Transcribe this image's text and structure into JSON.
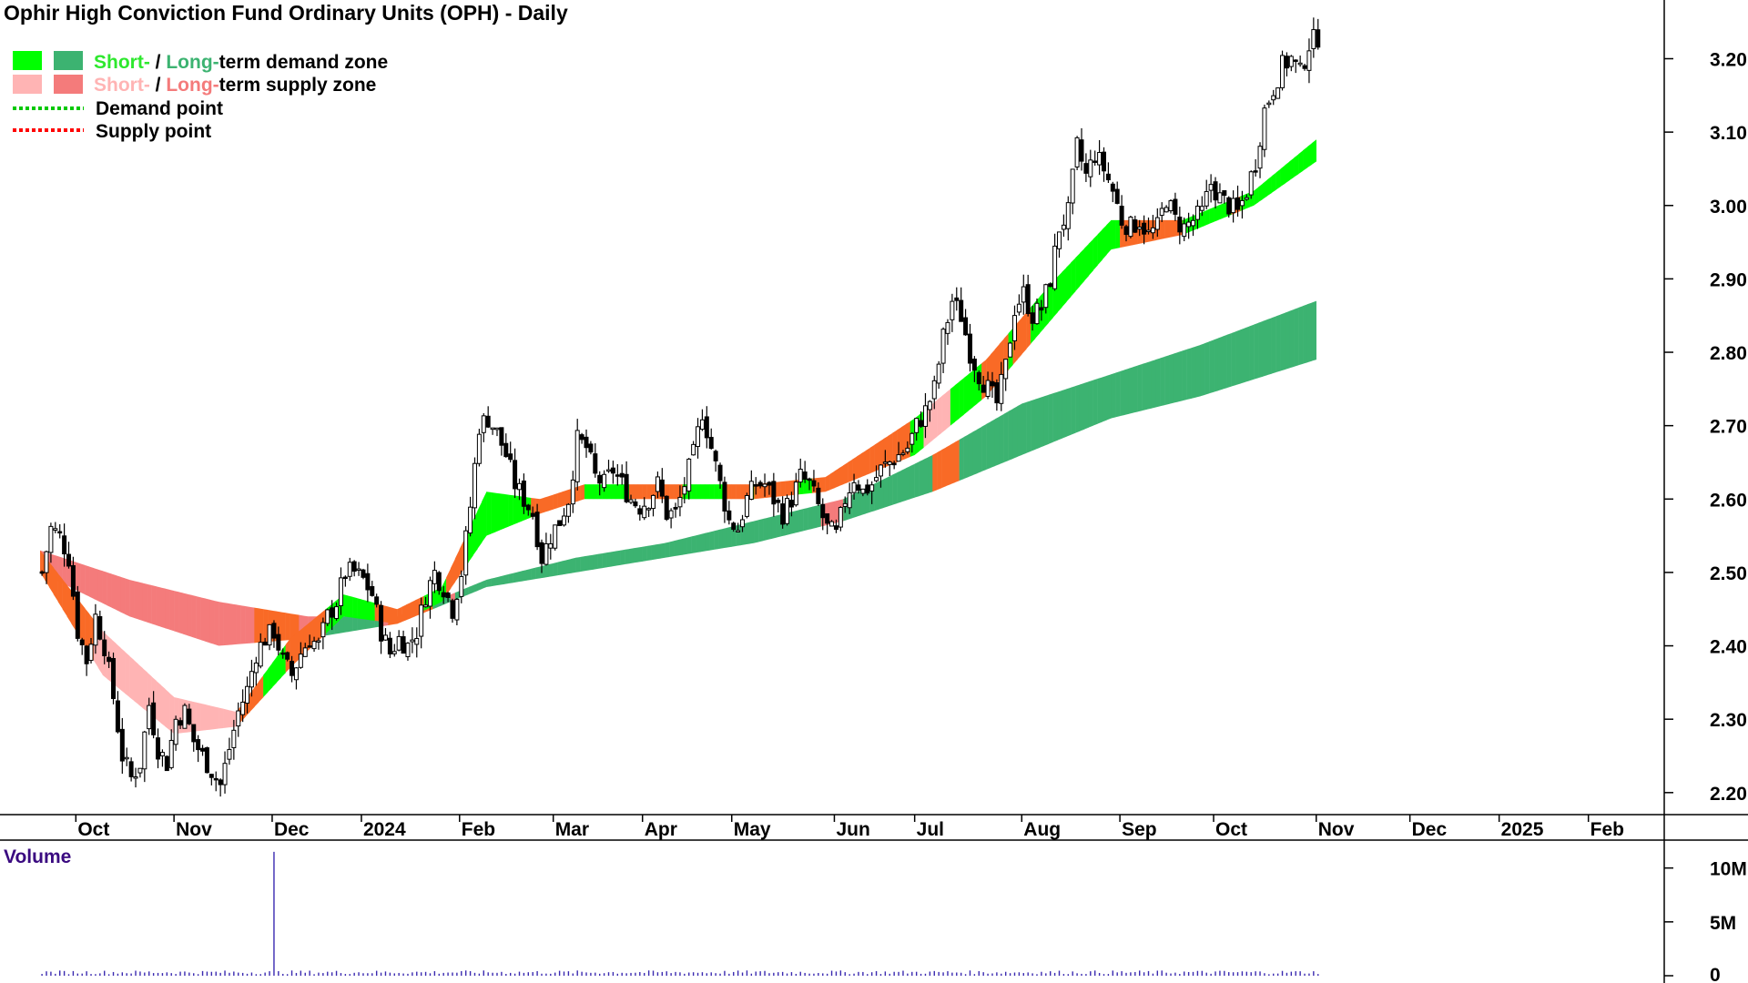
{
  "chart_data": {
    "type": "candlestick",
    "title": "Ophir High Conviction Fund Ordinary Units (OPH) - Daily",
    "legend": {
      "demand_short_word": "Short-",
      "demand_sep": " / ",
      "demand_long_word": "Long-",
      "demand_rest": "term demand zone",
      "supply_short_word": "Short-",
      "supply_sep": " / ",
      "supply_long_word": "Long-",
      "supply_rest": "term supply zone",
      "demand_point": "Demand point",
      "supply_point": "Supply point",
      "placement": "top-left"
    },
    "colors": {
      "short_demand": "#00ff00",
      "long_demand": "#3cb371",
      "short_supply": "#ffb4b4",
      "long_supply": "#f47b7b",
      "overlap_zone": "#f96a26",
      "demand_point": "#00c800",
      "supply_point": "#ff0000",
      "candle": "#000000",
      "volume": "#3a2ab0"
    },
    "x_ticks": [
      {
        "label": "Oct",
        "x": 8.0
      },
      {
        "label": "Nov",
        "x": 30.0
      },
      {
        "label": "Dec",
        "x": 52.0
      },
      {
        "label": "2024",
        "x": 72.0
      },
      {
        "label": "Feb",
        "x": 94.0
      },
      {
        "label": "Mar",
        "x": 115.0
      },
      {
        "label": "Apr",
        "x": 135.0
      },
      {
        "label": "May",
        "x": 155.0
      },
      {
        "label": "Jun",
        "x": 178.0
      },
      {
        "label": "Jul",
        "x": 196.0
      },
      {
        "label": "Aug",
        "x": 220.0
      },
      {
        "label": "Sep",
        "x": 242.0
      },
      {
        "label": "Oct",
        "x": 263.0
      },
      {
        "label": "Nov",
        "x": 286.0
      },
      {
        "label": "Dec",
        "x": 307.0
      },
      {
        "label": "2025",
        "x": 327.0
      },
      {
        "label": "Feb",
        "x": 347.0
      }
    ],
    "x_range": [
      -9,
      364
    ],
    "y_ticks": [
      "3.20",
      "3.10",
      "3.00",
      "2.90",
      "2.80",
      "2.70",
      "2.60",
      "2.50",
      "2.40",
      "2.30",
      "2.20"
    ],
    "y_range": [
      2.17,
      3.28
    ],
    "closes": [
      {
        "x": 0,
        "c": 2.5
      },
      {
        "x": 2,
        "c": 2.56
      },
      {
        "x": 4,
        "c": 2.55
      },
      {
        "x": 6,
        "c": 2.52
      },
      {
        "x": 8,
        "c": 2.42
      },
      {
        "x": 10,
        "c": 2.38
      },
      {
        "x": 12,
        "c": 2.44
      },
      {
        "x": 14,
        "c": 2.4
      },
      {
        "x": 16,
        "c": 2.33
      },
      {
        "x": 18,
        "c": 2.25
      },
      {
        "x": 20,
        "c": 2.22
      },
      {
        "x": 22,
        "c": 2.24
      },
      {
        "x": 24,
        "c": 2.32
      },
      {
        "x": 26,
        "c": 2.26
      },
      {
        "x": 28,
        "c": 2.24
      },
      {
        "x": 30,
        "c": 2.3
      },
      {
        "x": 32,
        "c": 2.31
      },
      {
        "x": 34,
        "c": 2.27
      },
      {
        "x": 36,
        "c": 2.25
      },
      {
        "x": 38,
        "c": 2.23
      },
      {
        "x": 40,
        "c": 2.21
      },
      {
        "x": 42,
        "c": 2.26
      },
      {
        "x": 44,
        "c": 2.31
      },
      {
        "x": 46,
        "c": 2.34
      },
      {
        "x": 48,
        "c": 2.39
      },
      {
        "x": 50,
        "c": 2.41
      },
      {
        "x": 52,
        "c": 2.42
      },
      {
        "x": 54,
        "c": 2.38
      },
      {
        "x": 56,
        "c": 2.36
      },
      {
        "x": 58,
        "c": 2.39
      },
      {
        "x": 60,
        "c": 2.41
      },
      {
        "x": 62,
        "c": 2.4
      },
      {
        "x": 64,
        "c": 2.44
      },
      {
        "x": 66,
        "c": 2.46
      },
      {
        "x": 68,
        "c": 2.5
      },
      {
        "x": 70,
        "c": 2.5
      },
      {
        "x": 72,
        "c": 2.49
      },
      {
        "x": 74,
        "c": 2.47
      },
      {
        "x": 76,
        "c": 2.42
      },
      {
        "x": 78,
        "c": 2.39
      },
      {
        "x": 80,
        "c": 2.41
      },
      {
        "x": 82,
        "c": 2.4
      },
      {
        "x": 84,
        "c": 2.42
      },
      {
        "x": 86,
        "c": 2.47
      },
      {
        "x": 88,
        "c": 2.5
      },
      {
        "x": 90,
        "c": 2.48
      },
      {
        "x": 92,
        "c": 2.45
      },
      {
        "x": 94,
        "c": 2.5
      },
      {
        "x": 96,
        "c": 2.59
      },
      {
        "x": 98,
        "c": 2.7
      },
      {
        "x": 100,
        "c": 2.71
      },
      {
        "x": 102,
        "c": 2.69
      },
      {
        "x": 104,
        "c": 2.66
      },
      {
        "x": 106,
        "c": 2.62
      },
      {
        "x": 108,
        "c": 2.6
      },
      {
        "x": 110,
        "c": 2.58
      },
      {
        "x": 112,
        "c": 2.52
      },
      {
        "x": 114,
        "c": 2.55
      },
      {
        "x": 116,
        "c": 2.57
      },
      {
        "x": 118,
        "c": 2.6
      },
      {
        "x": 120,
        "c": 2.68
      },
      {
        "x": 122,
        "c": 2.67
      },
      {
        "x": 124,
        "c": 2.63
      },
      {
        "x": 126,
        "c": 2.62
      },
      {
        "x": 128,
        "c": 2.64
      },
      {
        "x": 130,
        "c": 2.62
      },
      {
        "x": 132,
        "c": 2.6
      },
      {
        "x": 134,
        "c": 2.59
      },
      {
        "x": 136,
        "c": 2.6
      },
      {
        "x": 138,
        "c": 2.62
      },
      {
        "x": 140,
        "c": 2.58
      },
      {
        "x": 142,
        "c": 2.58
      },
      {
        "x": 144,
        "c": 2.62
      },
      {
        "x": 146,
        "c": 2.66
      },
      {
        "x": 148,
        "c": 2.72
      },
      {
        "x": 150,
        "c": 2.67
      },
      {
        "x": 152,
        "c": 2.62
      },
      {
        "x": 154,
        "c": 2.57
      },
      {
        "x": 156,
        "c": 2.56
      },
      {
        "x": 158,
        "c": 2.6
      },
      {
        "x": 160,
        "c": 2.62
      },
      {
        "x": 162,
        "c": 2.62
      },
      {
        "x": 164,
        "c": 2.6
      },
      {
        "x": 166,
        "c": 2.58
      },
      {
        "x": 168,
        "c": 2.6
      },
      {
        "x": 170,
        "c": 2.63
      },
      {
        "x": 172,
        "c": 2.62
      },
      {
        "x": 174,
        "c": 2.59
      },
      {
        "x": 176,
        "c": 2.56
      },
      {
        "x": 178,
        "c": 2.55
      },
      {
        "x": 180,
        "c": 2.6
      },
      {
        "x": 182,
        "c": 2.63
      },
      {
        "x": 184,
        "c": 2.61
      },
      {
        "x": 186,
        "c": 2.62
      },
      {
        "x": 188,
        "c": 2.64
      },
      {
        "x": 190,
        "c": 2.65
      },
      {
        "x": 192,
        "c": 2.66
      },
      {
        "x": 194,
        "c": 2.67
      },
      {
        "x": 196,
        "c": 2.7
      },
      {
        "x": 198,
        "c": 2.72
      },
      {
        "x": 200,
        "c": 2.75
      },
      {
        "x": 202,
        "c": 2.82
      },
      {
        "x": 204,
        "c": 2.87
      },
      {
        "x": 206,
        "c": 2.85
      },
      {
        "x": 208,
        "c": 2.8
      },
      {
        "x": 210,
        "c": 2.77
      },
      {
        "x": 212,
        "c": 2.75
      },
      {
        "x": 214,
        "c": 2.73
      },
      {
        "x": 216,
        "c": 2.78
      },
      {
        "x": 218,
        "c": 2.86
      },
      {
        "x": 220,
        "c": 2.88
      },
      {
        "x": 222,
        "c": 2.85
      },
      {
        "x": 224,
        "c": 2.86
      },
      {
        "x": 226,
        "c": 2.9
      },
      {
        "x": 228,
        "c": 2.97
      },
      {
        "x": 230,
        "c": 2.99
      },
      {
        "x": 232,
        "c": 3.08
      },
      {
        "x": 234,
        "c": 3.04
      },
      {
        "x": 236,
        "c": 3.07
      },
      {
        "x": 238,
        "c": 3.05
      },
      {
        "x": 240,
        "c": 3.02
      },
      {
        "x": 242,
        "c": 2.98
      },
      {
        "x": 244,
        "c": 2.97
      },
      {
        "x": 246,
        "c": 2.98
      },
      {
        "x": 248,
        "c": 2.96
      },
      {
        "x": 250,
        "c": 2.97
      },
      {
        "x": 252,
        "c": 3.01
      },
      {
        "x": 254,
        "c": 2.98
      },
      {
        "x": 256,
        "c": 2.97
      },
      {
        "x": 258,
        "c": 2.98
      },
      {
        "x": 260,
        "c": 2.99
      },
      {
        "x": 262,
        "c": 3.03
      },
      {
        "x": 264,
        "c": 3.01
      },
      {
        "x": 266,
        "c": 3.0
      },
      {
        "x": 268,
        "c": 2.99
      },
      {
        "x": 270,
        "c": 3.02
      },
      {
        "x": 272,
        "c": 3.06
      },
      {
        "x": 274,
        "c": 3.13
      },
      {
        "x": 276,
        "c": 3.16
      },
      {
        "x": 278,
        "c": 3.19
      },
      {
        "x": 280,
        "c": 3.2
      },
      {
        "x": 282,
        "c": 3.18
      },
      {
        "x": 284,
        "c": 3.22
      },
      {
        "x": 286,
        "c": 3.23
      }
    ],
    "zones": {
      "short_term": [
        {
          "x": 0,
          "a": 2.5,
          "b": 2.53
        },
        {
          "x": 14,
          "a": 2.36,
          "b": 2.42
        },
        {
          "x": 30,
          "a": 2.28,
          "b": 2.33
        },
        {
          "x": 44,
          "a": 2.29,
          "b": 2.31
        },
        {
          "x": 56,
          "a": 2.37,
          "b": 2.41
        },
        {
          "x": 68,
          "a": 2.44,
          "b": 2.47
        },
        {
          "x": 80,
          "a": 2.43,
          "b": 2.45
        },
        {
          "x": 90,
          "a": 2.46,
          "b": 2.48
        },
        {
          "x": 100,
          "a": 2.55,
          "b": 2.61
        },
        {
          "x": 112,
          "a": 2.58,
          "b": 2.6
        },
        {
          "x": 122,
          "a": 2.6,
          "b": 2.62
        },
        {
          "x": 140,
          "a": 2.6,
          "b": 2.62
        },
        {
          "x": 160,
          "a": 2.6,
          "b": 2.62
        },
        {
          "x": 176,
          "a": 2.61,
          "b": 2.63
        },
        {
          "x": 196,
          "a": 2.66,
          "b": 2.71
        },
        {
          "x": 212,
          "a": 2.74,
          "b": 2.79
        },
        {
          "x": 226,
          "a": 2.84,
          "b": 2.89
        },
        {
          "x": 240,
          "a": 2.94,
          "b": 2.98
        },
        {
          "x": 256,
          "a": 2.96,
          "b": 2.98
        },
        {
          "x": 272,
          "a": 3.0,
          "b": 3.02
        },
        {
          "x": 286,
          "a": 3.06,
          "b": 3.09
        }
      ],
      "long_term": [
        {
          "x": 0,
          "a": 2.5,
          "b": 2.53
        },
        {
          "x": 20,
          "a": 2.44,
          "b": 2.49
        },
        {
          "x": 40,
          "a": 2.4,
          "b": 2.46
        },
        {
          "x": 60,
          "a": 2.41,
          "b": 2.44
        },
        {
          "x": 80,
          "a": 2.43,
          "b": 2.44
        },
        {
          "x": 100,
          "a": 2.48,
          "b": 2.49
        },
        {
          "x": 120,
          "a": 2.5,
          "b": 2.52
        },
        {
          "x": 140,
          "a": 2.52,
          "b": 2.54
        },
        {
          "x": 160,
          "a": 2.54,
          "b": 2.57
        },
        {
          "x": 180,
          "a": 2.57,
          "b": 2.6
        },
        {
          "x": 200,
          "a": 2.61,
          "b": 2.66
        },
        {
          "x": 220,
          "a": 2.66,
          "b": 2.73
        },
        {
          "x": 240,
          "a": 2.71,
          "b": 2.77
        },
        {
          "x": 260,
          "a": 2.74,
          "b": 2.81
        },
        {
          "x": 286,
          "a": 2.79,
          "b": 2.87
        }
      ]
    },
    "volume": {
      "title": "Volume",
      "ticks": [
        "10M",
        "5M",
        "0"
      ],
      "y_range": [
        0,
        12
      ],
      "spike": {
        "x": 52,
        "v": 11.5
      },
      "baseline": 0.35
    },
    "grid": false
  }
}
